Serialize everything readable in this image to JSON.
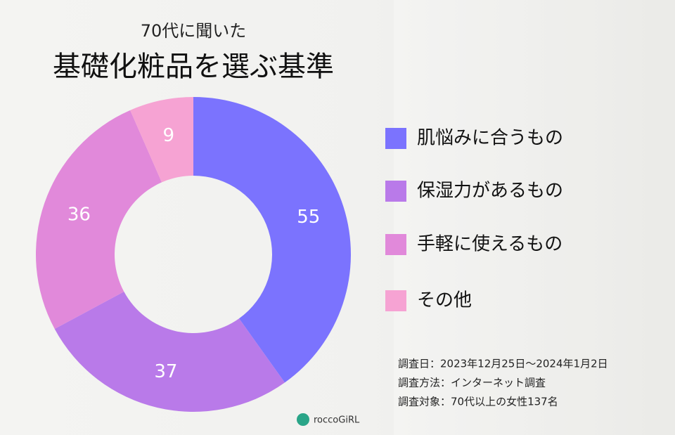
{
  "chart_data": {
    "type": "donut",
    "title": "基礎化粧品を選ぶ基準",
    "subtitle": "70代に聞いた",
    "categories": [
      "肌悩みに合うもの",
      "保湿力があるもの",
      "手軽に使えるもの",
      "その他"
    ],
    "values": [
      55,
      37,
      36,
      9
    ],
    "colors": [
      "#7b73fe",
      "#b97ae9",
      "#e189da",
      "#f6a3d3"
    ],
    "legend": "right",
    "notes": [
      "調査日：2023年12月25日〜2024年1月2日",
      "調査方法：インターネット調査",
      "調査対象：70代以上の女性137名"
    ],
    "brand": "roccoGiRL"
  }
}
